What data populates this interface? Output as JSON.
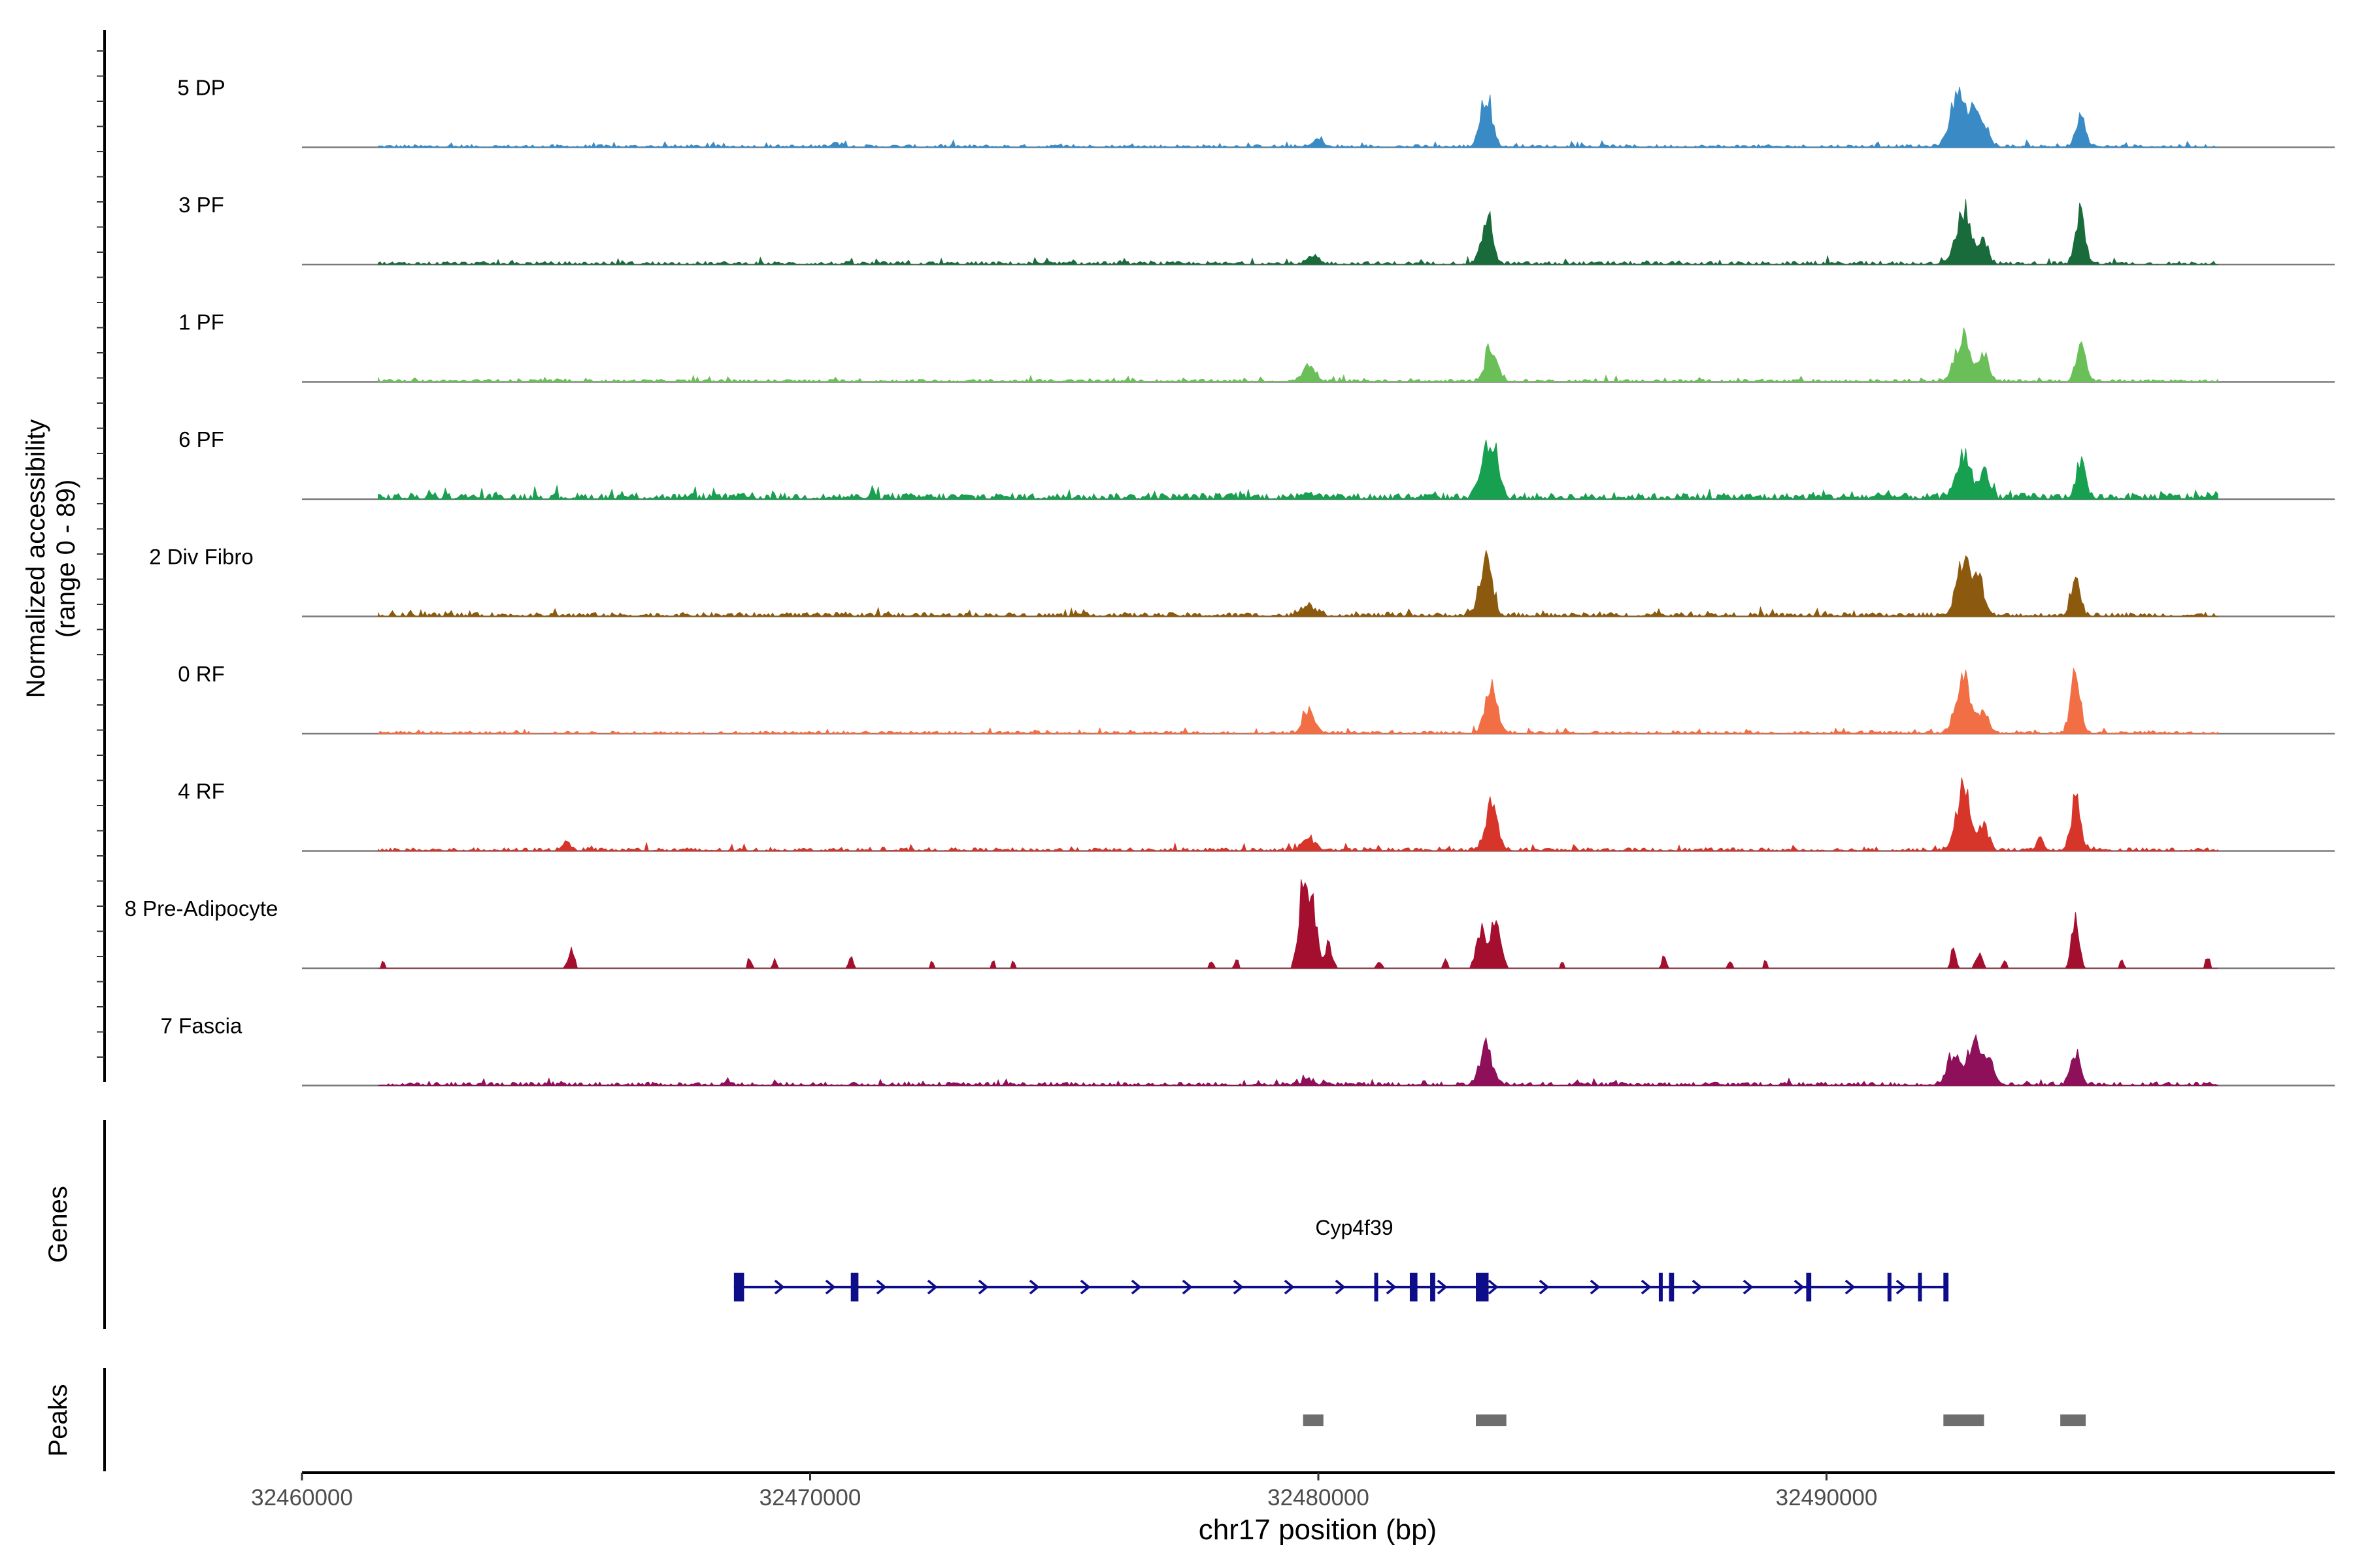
{
  "chart_data": {
    "type": "area",
    "chromosome": "chr17",
    "xlabel": "chr17 position (bp)",
    "xlim": [
      32460000,
      32500000
    ],
    "xticks": [
      32460000,
      32470000,
      32480000,
      32490000
    ],
    "xtick_labels": [
      "32460000",
      "32470000",
      "32480000",
      "32490000"
    ],
    "ylabel_line1": "Normalized accessibility",
    "ylabel_line2": "(range 0 - 89)",
    "ylim": [
      0,
      89
    ],
    "data_start": 32461500,
    "data_end": 32497700,
    "tracks": [
      {
        "name": "5 DP",
        "color": "#3A8BC5",
        "base": 0.8,
        "noise": 2.0,
        "peaks": [
          [
            32470500,
            3,
            110
          ],
          [
            32480000,
            7,
            90
          ],
          [
            32483300,
            52,
            110
          ],
          [
            32492600,
            60,
            150
          ],
          [
            32492900,
            35,
            70
          ],
          [
            32493100,
            22,
            90
          ],
          [
            32495000,
            30,
            90
          ]
        ]
      },
      {
        "name": "3 PF",
        "color": "#1A6B3C",
        "base": 1.0,
        "noise": 2.2,
        "peaks": [
          [
            32479900,
            8,
            110
          ],
          [
            32483300,
            33,
            110
          ],
          [
            32483400,
            18,
            60
          ],
          [
            32492700,
            54,
            140
          ],
          [
            32493100,
            22,
            90
          ],
          [
            32495000,
            50,
            90
          ]
        ]
      },
      {
        "name": "1 PF",
        "color": "#6BBF59",
        "base": 0.8,
        "noise": 1.8,
        "peaks": [
          [
            32479800,
            16,
            110
          ],
          [
            32483400,
            35,
            110
          ],
          [
            32492700,
            48,
            150
          ],
          [
            32493100,
            25,
            90
          ],
          [
            32495000,
            40,
            90
          ]
        ]
      },
      {
        "name": "6 PF",
        "color": "#17A050",
        "base": 2.5,
        "noise": 3.5,
        "peaks": [
          [
            32479800,
            6,
            110
          ],
          [
            32483300,
            45,
            120
          ],
          [
            32483500,
            30,
            90
          ],
          [
            32492700,
            40,
            140
          ],
          [
            32493100,
            26,
            90
          ],
          [
            32495000,
            36,
            90
          ]
        ]
      },
      {
        "name": "2 Div Fibro",
        "color": "#8C5A0E",
        "base": 1.4,
        "noise": 2.5,
        "peaks": [
          [
            32479800,
            12,
            110
          ],
          [
            32483300,
            55,
            120
          ],
          [
            32492700,
            52,
            140
          ],
          [
            32493000,
            38,
            90
          ],
          [
            32494900,
            38,
            90
          ]
        ]
      },
      {
        "name": "0 RF",
        "color": "#F26F45",
        "base": 0.8,
        "noise": 1.8,
        "peaks": [
          [
            32479800,
            22,
            110
          ],
          [
            32483400,
            45,
            120
          ],
          [
            32492700,
            55,
            150
          ],
          [
            32493100,
            20,
            90
          ],
          [
            32494900,
            65,
            90
          ]
        ]
      },
      {
        "name": "4 RF",
        "color": "#D7342A",
        "base": 1.0,
        "noise": 2.2,
        "peaks": [
          [
            32465200,
            8,
            80
          ],
          [
            32479800,
            12,
            110
          ],
          [
            32483400,
            45,
            120
          ],
          [
            32492700,
            60,
            140
          ],
          [
            32493100,
            25,
            90
          ],
          [
            32494200,
            12,
            70
          ],
          [
            32494900,
            50,
            90
          ]
        ]
      },
      {
        "name": "8 Pre-Adipocyte",
        "color": "#A50F2F",
        "base": 0,
        "noise": 0,
        "sparse": true,
        "peaks": [
          [
            32461600,
            8,
            30
          ],
          [
            32465300,
            20,
            60
          ],
          [
            32468800,
            10,
            40
          ],
          [
            32469300,
            8,
            40
          ],
          [
            32470800,
            12,
            40
          ],
          [
            32472400,
            8,
            40
          ],
          [
            32473600,
            8,
            40
          ],
          [
            32474000,
            8,
            40
          ],
          [
            32477900,
            8,
            40
          ],
          [
            32478400,
            8,
            40
          ],
          [
            32479700,
            80,
            90
          ],
          [
            32479900,
            55,
            80
          ],
          [
            32480200,
            25,
            70
          ],
          [
            32481200,
            8,
            40
          ],
          [
            32482500,
            10,
            40
          ],
          [
            32483200,
            40,
            90
          ],
          [
            32483500,
            55,
            90
          ],
          [
            32484800,
            8,
            40
          ],
          [
            32486800,
            12,
            40
          ],
          [
            32488100,
            8,
            40
          ],
          [
            32488800,
            8,
            40
          ],
          [
            32492500,
            25,
            40
          ],
          [
            32493000,
            15,
            60
          ],
          [
            32493500,
            8,
            40
          ],
          [
            32494900,
            55,
            70
          ],
          [
            32495800,
            10,
            40
          ],
          [
            32497500,
            12,
            40
          ]
        ]
      },
      {
        "name": "7 Fascia",
        "color": "#8E0F5A",
        "base": 1.0,
        "noise": 2.5,
        "peaks": [
          [
            32479800,
            6,
            110
          ],
          [
            32483300,
            38,
            120
          ],
          [
            32492500,
            30,
            120
          ],
          [
            32492900,
            45,
            120
          ],
          [
            32493200,
            25,
            90
          ],
          [
            32494900,
            32,
            90
          ]
        ]
      }
    ],
    "genes": [
      {
        "name": "Cyp4f39",
        "start": 32468500,
        "end": 32492400,
        "strand": "+",
        "exons": [
          [
            32468500,
            32468700
          ],
          [
            32470800,
            32470950
          ],
          [
            32481100,
            32481130
          ],
          [
            32481800,
            32481950
          ],
          [
            32482200,
            32482300
          ],
          [
            32483100,
            32483350
          ],
          [
            32486700,
            32486760
          ],
          [
            32486900,
            32487000
          ],
          [
            32489600,
            32489700
          ],
          [
            32491200,
            32491230
          ],
          [
            32491800,
            32491830
          ],
          [
            32492300,
            32492400
          ]
        ]
      }
    ],
    "peaks": [
      [
        32479700,
        32480100
      ],
      [
        32483100,
        32483700
      ],
      [
        32492300,
        32493100
      ],
      [
        32494600,
        32495100
      ]
    ],
    "panel_labels": {
      "genes": "Genes",
      "peaks": "Peaks"
    }
  }
}
